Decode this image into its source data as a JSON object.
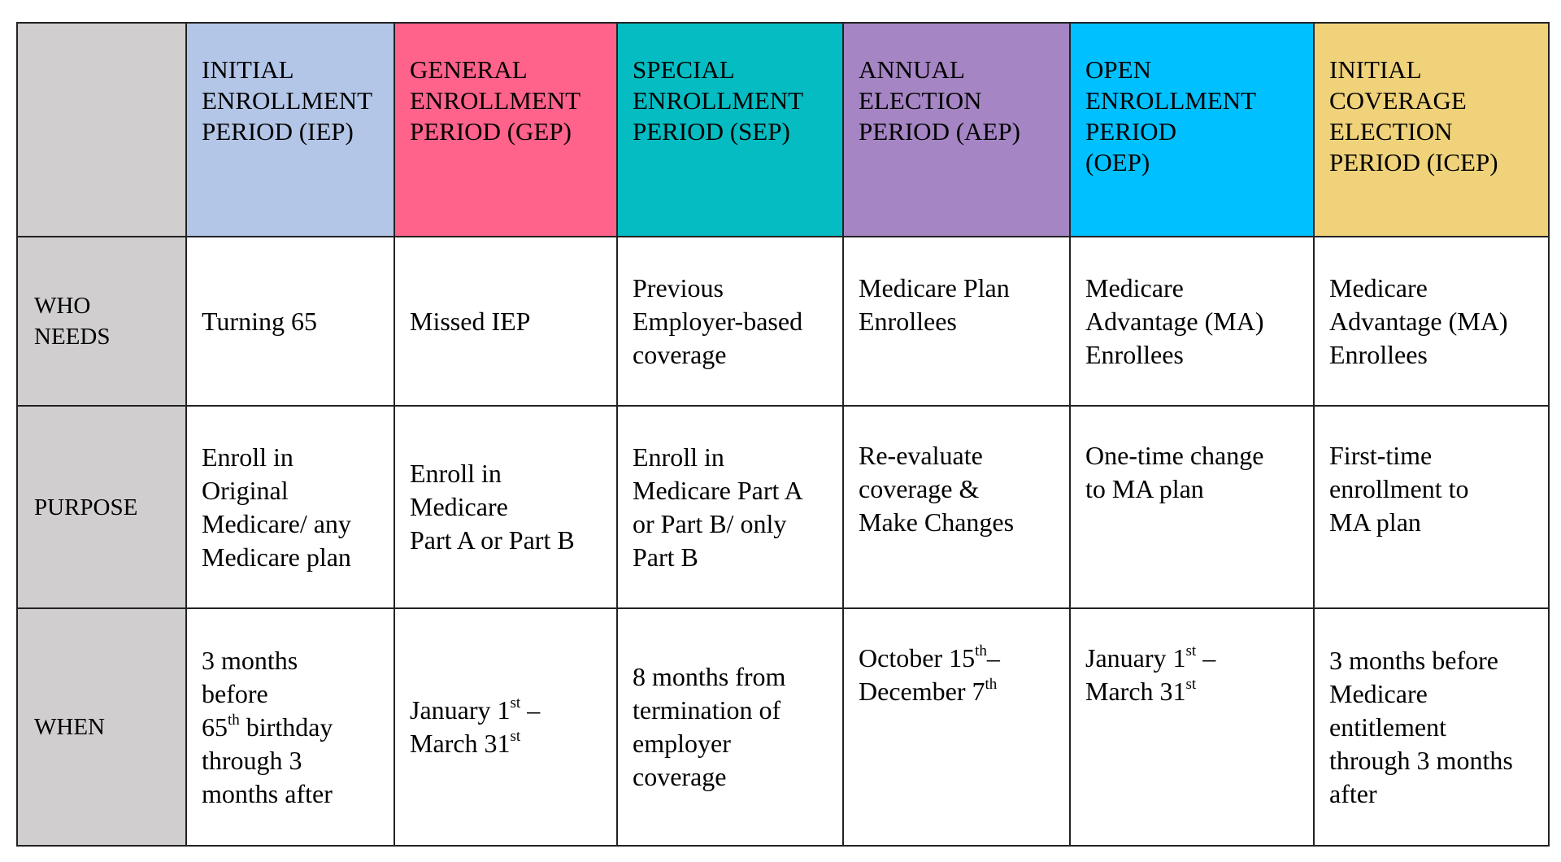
{
  "colors": {
    "label_column": "#d0cece",
    "iep": "#b4c6e7",
    "gep": "#ff628a",
    "sep": "#05bcc2",
    "aep": "#a585c3",
    "oep": "#00c0ff",
    "icep": "#f0d27a"
  },
  "header": [
    {
      "key": "iep",
      "lines": [
        "INITIAL",
        "ENROLLMENT",
        "PERIOD (IEP)"
      ]
    },
    {
      "key": "gep",
      "lines": [
        "GENERAL",
        "ENROLLMENT",
        "PERIOD (GEP)"
      ]
    },
    {
      "key": "sep",
      "lines": [
        "SPECIAL",
        "ENROLLMENT",
        "PERIOD (SEP)"
      ]
    },
    {
      "key": "aep",
      "lines": [
        "ANNUAL",
        "ELECTION",
        "PERIOD (AEP)"
      ]
    },
    {
      "key": "oep",
      "lines": [
        "OPEN",
        "ENROLLMENT",
        "PERIOD",
        "(OEP)"
      ]
    },
    {
      "key": "icep",
      "lines": [
        "INITIAL",
        "COVERAGE",
        "ELECTION",
        "PERIOD (ICEP)"
      ]
    }
  ],
  "rows": [
    {
      "label": [
        "WHO",
        "NEEDS"
      ],
      "cells": [
        [
          [
            {
              "text": "Turning 65"
            }
          ]
        ],
        [
          [
            {
              "text": "Missed IEP"
            }
          ]
        ],
        [
          [
            {
              "text": "Previous"
            }
          ],
          [
            {
              "text": "Employer-based"
            }
          ],
          [
            {
              "text": "coverage"
            }
          ]
        ],
        [
          [
            {
              "text": "Medicare Plan"
            }
          ],
          [
            {
              "text": "Enrollees"
            }
          ],
          [
            {
              "text": " "
            }
          ]
        ],
        [
          [
            {
              "text": "Medicare"
            }
          ],
          [
            {
              "text": "Advantage (MA)"
            }
          ],
          [
            {
              "text": "Enrollees"
            }
          ]
        ],
        [
          [
            {
              "text": "Medicare"
            }
          ],
          [
            {
              "text": "Advantage (MA)"
            }
          ],
          [
            {
              "text": "Enrollees"
            }
          ]
        ]
      ]
    },
    {
      "label": [
        "PURPOSE"
      ],
      "cells": [
        [
          [
            {
              "text": "Enroll in"
            }
          ],
          [
            {
              "text": "Original"
            }
          ],
          [
            {
              "text": "Medicare/ any"
            }
          ],
          [
            {
              "text": "Medicare plan"
            }
          ]
        ],
        [
          [
            {
              "text": "Enroll in"
            }
          ],
          [
            {
              "text": "Medicare"
            }
          ],
          [
            {
              "text": "Part A or Part B"
            }
          ]
        ],
        [
          [
            {
              "text": "Enroll in"
            }
          ],
          [
            {
              "text": "Medicare Part A"
            }
          ],
          [
            {
              "text": "or Part B/ only"
            }
          ],
          [
            {
              "text": "Part B"
            }
          ]
        ],
        [
          [
            {
              "text": "Re-evaluate"
            }
          ],
          [
            {
              "text": "coverage &"
            }
          ],
          [
            {
              "text": "Make Changes"
            }
          ]
        ],
        [
          [
            {
              "text": "One-time change"
            }
          ],
          [
            {
              "text": "to MA plan"
            }
          ]
        ],
        [
          [
            {
              "text": "First-time"
            }
          ],
          [
            {
              "text": "enrollment to"
            }
          ],
          [
            {
              "text": "MA plan"
            }
          ]
        ]
      ]
    },
    {
      "label": [
        "WHEN"
      ],
      "cells": [
        [
          [
            {
              "text": "3 months"
            }
          ],
          [
            {
              "text": "before"
            }
          ],
          [
            {
              "text": "65"
            },
            {
              "text": "th",
              "sup": true
            },
            {
              "text": " birthday"
            }
          ],
          [
            {
              "text": "through 3"
            }
          ],
          [
            {
              "text": "months after"
            }
          ]
        ],
        [
          [
            {
              "text": "January 1"
            },
            {
              "text": "st",
              "sup": true
            },
            {
              "text": " –"
            }
          ],
          [
            {
              "text": "March 31"
            },
            {
              "text": "st",
              "sup": true
            }
          ]
        ],
        [
          [
            {
              "text": "8 months from"
            }
          ],
          [
            {
              "text": "termination of"
            }
          ],
          [
            {
              "text": "employer"
            }
          ],
          [
            {
              "text": "coverage"
            }
          ]
        ],
        [
          [
            {
              "text": "October 15"
            },
            {
              "text": "th",
              "sup": true
            },
            {
              "text": "–"
            }
          ],
          [
            {
              "text": "December 7"
            },
            {
              "text": "th",
              "sup": true
            }
          ]
        ],
        [
          [
            {
              "text": "January 1"
            },
            {
              "text": "st",
              "sup": true
            },
            {
              "text": " –"
            }
          ],
          [
            {
              "text": "March 31"
            },
            {
              "text": "st",
              "sup": true
            }
          ]
        ],
        [
          [
            {
              "text": "3 months before"
            }
          ],
          [
            {
              "text": "Medicare"
            }
          ],
          [
            {
              "text": "entitlement"
            }
          ],
          [
            {
              "text": "through 3 months"
            }
          ],
          [
            {
              "text": "after"
            }
          ]
        ]
      ]
    }
  ]
}
